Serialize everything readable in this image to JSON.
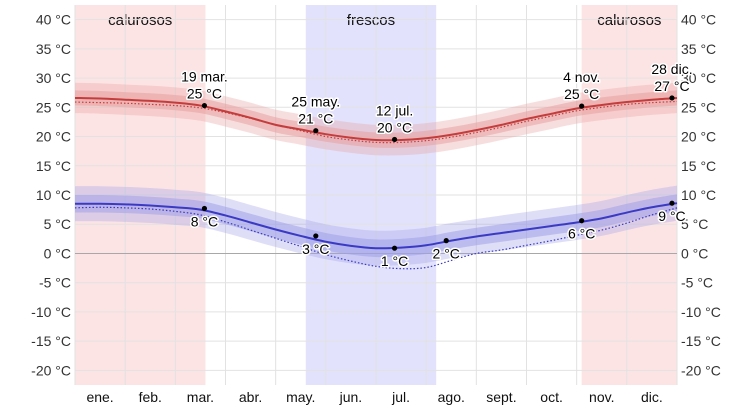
{
  "chart_data": {
    "type": "line",
    "ylim": [
      -22.5,
      42.5
    ],
    "y_ticks": [
      40,
      35,
      30,
      25,
      20,
      15,
      10,
      5,
      0,
      -5,
      -10,
      -15,
      -20
    ],
    "y_tick_labels": [
      "40 °C",
      "35 °C",
      "30 °C",
      "25 °C",
      "20 °C",
      "15 °C",
      "10 °C",
      "5 °C",
      "0 °C",
      "-5 °C",
      "-10 °C",
      "-15 °C",
      "-20 °C"
    ],
    "months": [
      "ene.",
      "feb.",
      "mar.",
      "abr.",
      "may.",
      "jun.",
      "jul.",
      "ago.",
      "sept.",
      "oct.",
      "nov.",
      "dic."
    ],
    "grid": true,
    "bands": [
      {
        "label": "calurosos",
        "start": 0,
        "end": 2.6,
        "color": "#fde4e4"
      },
      {
        "label": "frescos",
        "start": 4.6,
        "end": 7.2,
        "color": "#e2e2fc"
      },
      {
        "label": "calurosos",
        "start": 10.1,
        "end": 12,
        "color": "#fde4e4"
      }
    ],
    "series": [
      {
        "color": "#c43c3c",
        "band_color": "#e8a0a0",
        "x": [
          0,
          0.5,
          1,
          1.5,
          2,
          2.5,
          3,
          3.5,
          4,
          4.5,
          5,
          5.5,
          6,
          6.5,
          7,
          7.5,
          8,
          8.5,
          9,
          9.5,
          10,
          10.5,
          11,
          11.5,
          12
        ],
        "values": [
          26.6,
          26.5,
          26.3,
          26.1,
          25.8,
          25.3,
          24.3,
          23.2,
          22.0,
          21.2,
          20.4,
          19.8,
          19.4,
          19.4,
          19.7,
          20.3,
          21.1,
          22.0,
          23.0,
          23.9,
          24.8,
          25.4,
          25.9,
          26.3,
          26.6
        ],
        "inner_low": [
          25.3,
          25.2,
          25.0,
          24.8,
          24.5,
          24.0,
          23.0,
          21.9,
          20.7,
          19.9,
          19.1,
          18.5,
          18.1,
          18.1,
          18.4,
          19.0,
          19.8,
          20.7,
          21.7,
          22.6,
          23.5,
          24.1,
          24.6,
          25.0,
          25.3
        ],
        "inner_high": [
          27.9,
          27.8,
          27.6,
          27.4,
          27.1,
          26.6,
          25.6,
          24.5,
          23.3,
          22.5,
          21.7,
          21.1,
          20.7,
          20.7,
          21.0,
          21.6,
          22.4,
          23.3,
          24.3,
          25.2,
          26.1,
          26.7,
          27.2,
          27.6,
          27.9
        ],
        "outer_low": [
          24.0,
          23.9,
          23.7,
          23.5,
          23.2,
          22.7,
          21.7,
          20.6,
          19.4,
          18.6,
          17.8,
          17.2,
          16.8,
          16.8,
          17.1,
          17.7,
          18.5,
          19.4,
          20.4,
          21.3,
          22.2,
          22.8,
          23.3,
          23.7,
          24.0
        ],
        "outer_high": [
          29.2,
          29.1,
          28.9,
          28.7,
          28.4,
          27.9,
          26.9,
          25.8,
          24.6,
          23.8,
          23.0,
          22.4,
          22.0,
          22.0,
          22.3,
          22.9,
          23.7,
          24.6,
          25.6,
          26.5,
          27.4,
          28.0,
          28.5,
          28.9,
          29.2
        ],
        "dotted": [
          25.9,
          25.8,
          25.7,
          25.5,
          25.3,
          24.9,
          24.1,
          23.1,
          22.0,
          21.0,
          20.0,
          19.4,
          19.0,
          19.0,
          19.3,
          19.9,
          20.7,
          21.6,
          22.6,
          23.5,
          24.4,
          25.0,
          25.5,
          25.8,
          26.0
        ]
      },
      {
        "color": "#3a3ac4",
        "band_color": "#a0a0e8",
        "x": [
          0,
          0.5,
          1,
          1.5,
          2,
          2.5,
          3,
          3.5,
          4,
          4.5,
          5,
          5.5,
          6,
          6.5,
          7,
          7.5,
          8,
          8.5,
          9,
          9.5,
          10,
          10.5,
          11,
          11.5,
          12
        ],
        "values": [
          8.5,
          8.5,
          8.4,
          8.2,
          7.9,
          7.5,
          6.5,
          5.3,
          4.1,
          3.0,
          2.0,
          1.3,
          0.9,
          1.0,
          1.4,
          2.2,
          2.9,
          3.5,
          4.1,
          4.7,
          5.3,
          6.0,
          7.0,
          7.9,
          8.6
        ],
        "inner_low": [
          7.0,
          7.0,
          6.9,
          6.7,
          6.4,
          6.0,
          5.0,
          3.8,
          2.6,
          1.5,
          0.5,
          -0.2,
          -0.6,
          -0.5,
          -0.1,
          0.7,
          1.4,
          2.0,
          2.6,
          3.2,
          3.8,
          4.5,
          5.5,
          6.4,
          7.1
        ],
        "inner_high": [
          10.0,
          10.0,
          9.9,
          9.7,
          9.4,
          9.0,
          8.0,
          6.8,
          5.6,
          4.5,
          3.5,
          2.8,
          2.4,
          2.5,
          2.9,
          3.7,
          4.4,
          5.0,
          5.6,
          6.2,
          6.8,
          7.5,
          8.5,
          9.4,
          10.1
        ],
        "outer_low": [
          5.5,
          5.5,
          5.4,
          5.2,
          4.9,
          4.5,
          3.5,
          2.3,
          1.1,
          0.0,
          -1.0,
          -1.7,
          -2.1,
          -2.0,
          -1.6,
          -0.8,
          -0.1,
          0.5,
          1.1,
          1.7,
          2.3,
          3.0,
          4.0,
          4.9,
          5.6
        ],
        "outer_high": [
          11.5,
          11.5,
          11.4,
          11.2,
          10.9,
          10.5,
          9.5,
          8.3,
          7.1,
          6.0,
          5.0,
          4.3,
          3.9,
          4.0,
          4.4,
          5.2,
          5.9,
          6.5,
          7.1,
          7.7,
          8.3,
          9.0,
          10.0,
          10.9,
          11.6
        ],
        "dotted": [
          7.8,
          7.9,
          7.8,
          7.6,
          7.2,
          6.6,
          5.4,
          4.0,
          2.6,
          1.2,
          -0.2,
          -1.3,
          -2.2,
          -2.6,
          -2.4,
          -1.2,
          0.0,
          0.6,
          1.4,
          2.2,
          3.1,
          4.0,
          5.2,
          6.6,
          7.8
        ]
      }
    ],
    "annotations": [
      {
        "x": 2.58,
        "y": 25.3,
        "lines": [
          "19 mar.",
          "25 °C"
        ],
        "pos": "above"
      },
      {
        "x": 4.8,
        "y": 21.0,
        "lines": [
          "25 may.",
          "21 °C"
        ],
        "pos": "above"
      },
      {
        "x": 6.37,
        "y": 19.5,
        "lines": [
          "12 jul.",
          "20 °C"
        ],
        "pos": "above"
      },
      {
        "x": 10.1,
        "y": 25.2,
        "lines": [
          "4 nov.",
          "25 °C"
        ],
        "pos": "above"
      },
      {
        "x": 11.9,
        "y": 26.6,
        "lines": [
          "28 dic.",
          "27 °C"
        ],
        "pos": "above"
      },
      {
        "x": 2.58,
        "y": 7.7,
        "lines": [
          "8 °C"
        ],
        "pos": "below"
      },
      {
        "x": 4.8,
        "y": 3.0,
        "lines": [
          "3 °C"
        ],
        "pos": "below"
      },
      {
        "x": 6.37,
        "y": 0.9,
        "lines": [
          "1 °C"
        ],
        "pos": "below"
      },
      {
        "x": 7.4,
        "y": 2.2,
        "lines": [
          "2 °C"
        ],
        "pos": "below"
      },
      {
        "x": 10.1,
        "y": 5.6,
        "lines": [
          "6 °C"
        ],
        "pos": "below"
      },
      {
        "x": 11.9,
        "y": 8.6,
        "lines": [
          "9 °C"
        ],
        "pos": "below"
      }
    ]
  }
}
